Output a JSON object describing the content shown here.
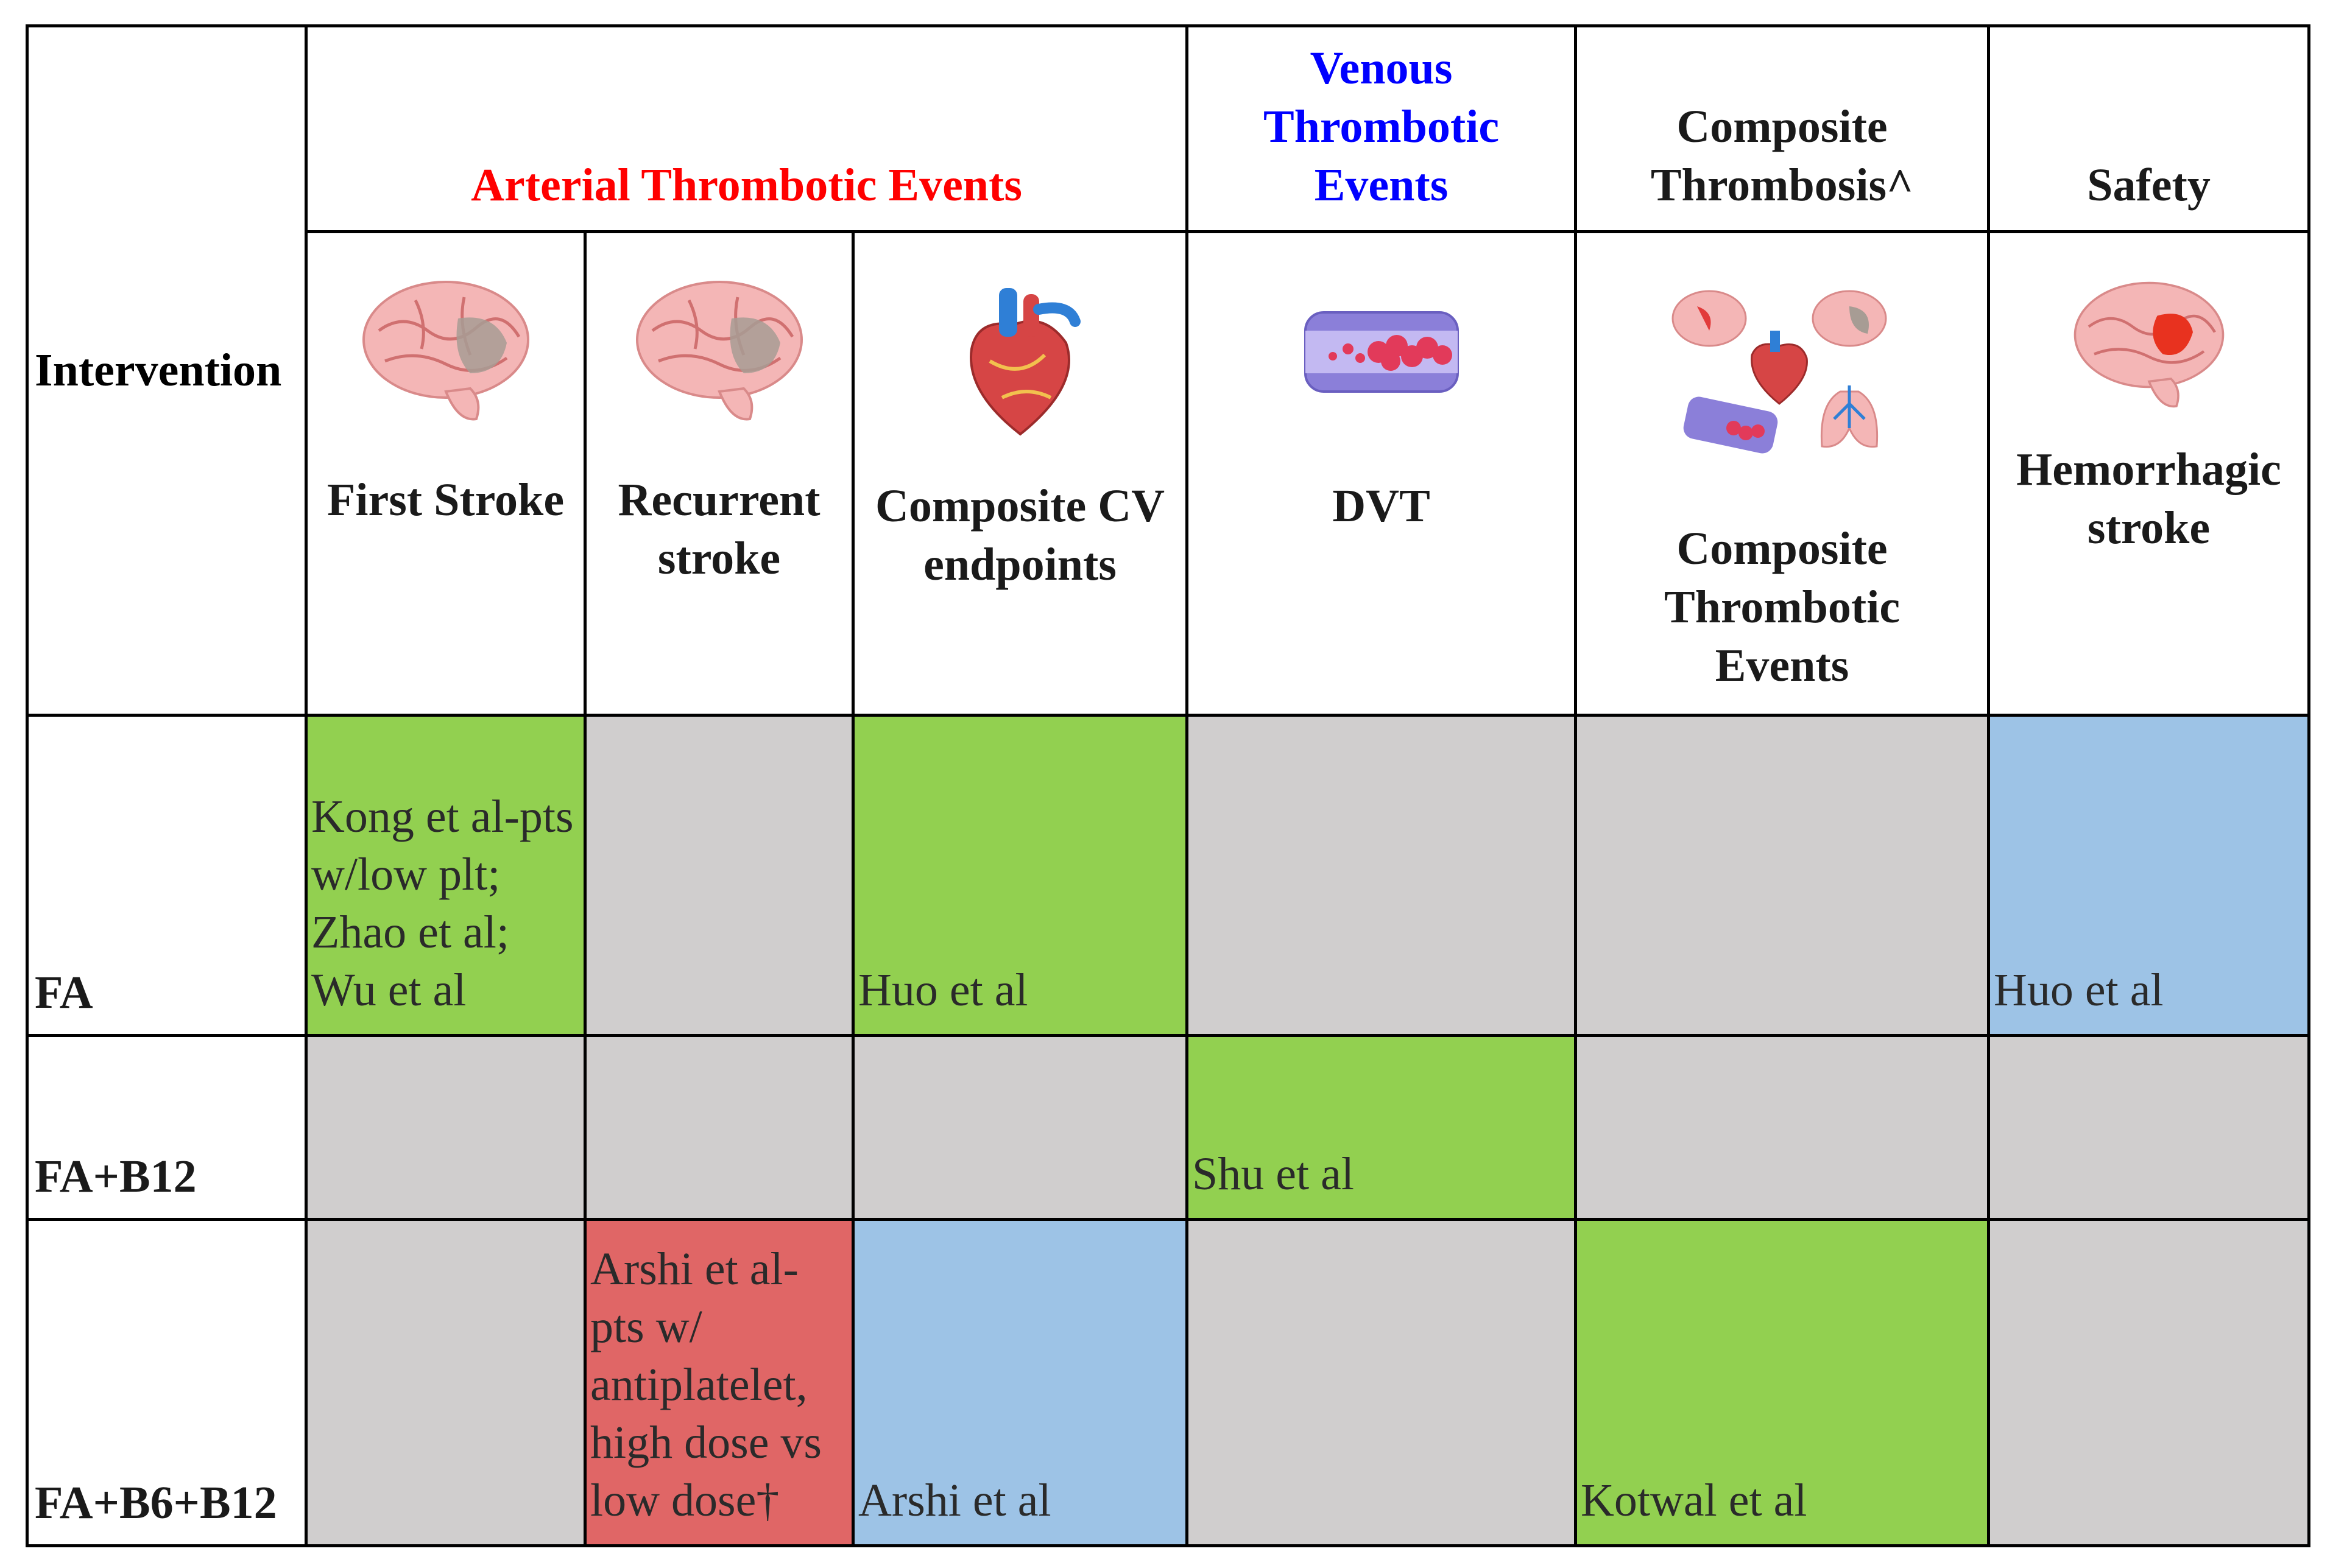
{
  "header": {
    "intervention": "Intervention",
    "groups": [
      {
        "label": "Arterial Thrombotic Events",
        "color": "#ff0000"
      },
      {
        "label": "Venous Thrombotic Events",
        "color": "#0000ff"
      },
      {
        "label": "Composite Thrombosis^",
        "color": "#1a1a1a"
      },
      {
        "label": "Safety",
        "color": "#1a1a1a"
      }
    ],
    "columns": [
      {
        "label": "First Stroke",
        "icon": "brain-icon"
      },
      {
        "label": "Recurrent stroke",
        "icon": "brain-icon"
      },
      {
        "label": "Composite CV endpoints",
        "icon": "heart-icon"
      },
      {
        "label": "DVT",
        "icon": "blood-vessel-clot-icon"
      },
      {
        "label": "Composite Thrombotic Events",
        "icon": "organs-collage-icon"
      },
      {
        "label": "Hemorrhagic stroke",
        "icon": "brain-hemorrhage-icon"
      }
    ]
  },
  "rows": [
    {
      "label": "FA",
      "cells": [
        {
          "text": "Kong et al-pts w/low plt; Zhao et al; Wu et al",
          "color": "green"
        },
        {
          "text": "",
          "color": "gray"
        },
        {
          "text": "Huo et al",
          "color": "green"
        },
        {
          "text": "",
          "color": "gray"
        },
        {
          "text": "",
          "color": "gray"
        },
        {
          "text": "Huo et al",
          "color": "blue"
        }
      ]
    },
    {
      "label": "FA+B12",
      "cells": [
        {
          "text": "",
          "color": "gray"
        },
        {
          "text": "",
          "color": "gray"
        },
        {
          "text": "",
          "color": "gray"
        },
        {
          "text": "Shu et al",
          "color": "green"
        },
        {
          "text": "",
          "color": "gray"
        },
        {
          "text": "",
          "color": "gray"
        }
      ]
    },
    {
      "label": "FA+B6+B12",
      "cells": [
        {
          "text": "",
          "color": "gray"
        },
        {
          "text": "Arshi et al-pts w/ antiplatelet, high dose vs low dose†",
          "color": "red"
        },
        {
          "text": "Arshi et al",
          "color": "blue"
        },
        {
          "text": "",
          "color": "gray"
        },
        {
          "text": "Kotwal et al",
          "color": "green"
        },
        {
          "text": "",
          "color": "gray"
        }
      ]
    }
  ],
  "legend_colors": {
    "green": "#92d050",
    "gray": "#d0cece",
    "blue": "#9dc3e6",
    "red": "#e06666"
  }
}
